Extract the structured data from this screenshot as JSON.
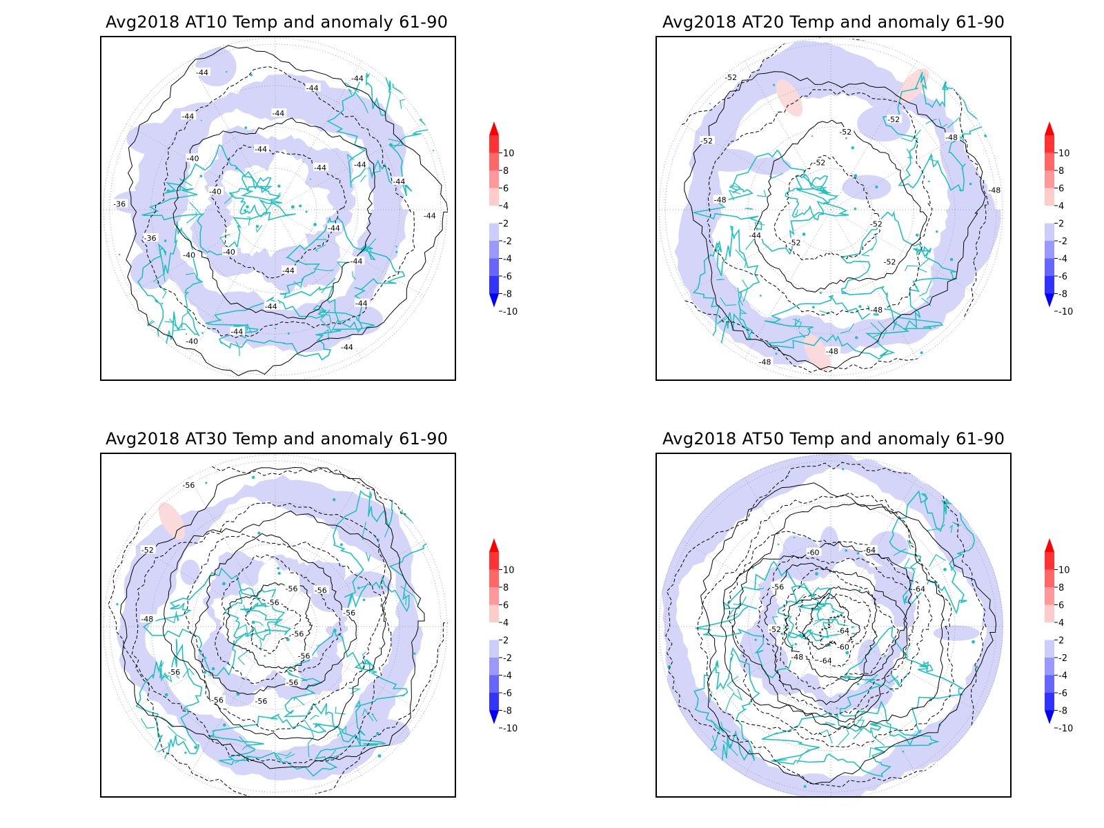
{
  "panels": [
    {
      "title": "Avg2018 AT10 Temp and anomaly 61-90",
      "contour_labels": [
        "-44",
        "-44",
        "-44",
        "-44",
        "-44",
        "-44",
        "-44",
        "-40",
        "-40",
        "-40",
        "-36",
        "-36",
        "-40",
        "-40",
        "-44",
        "-44",
        "-44",
        "-44",
        "-44",
        "-44",
        "-44",
        "-44",
        "-44",
        "-44"
      ],
      "anomaly_colors": [
        "#d5d5fa"
      ]
    },
    {
      "title": "Avg2018 AT20 Temp and anomaly 61-90",
      "contour_labels": [
        "-52",
        "-52",
        "-48",
        "-48",
        "-48",
        "-52",
        "-44",
        "-48",
        "-52",
        "-52",
        "-52",
        "-52",
        "-52",
        "-48",
        "-48"
      ],
      "anomaly_colors": [
        "#d5d5fa",
        "#fadada"
      ]
    },
    {
      "title": "Avg2018 AT30 Temp and anomaly 61-90",
      "contour_labels": [
        "-56",
        "-56",
        "-56",
        "-56",
        "-56",
        "-56",
        "-48",
        "-52",
        "-56",
        "-56",
        "-56",
        "-56",
        "-56"
      ],
      "anomaly_colors": [
        "#d5d5fa",
        "#fadada"
      ]
    },
    {
      "title": "Avg2018 AT50 Temp and anomaly 61-90",
      "contour_labels": [
        "-64",
        "-60",
        "-64",
        "-48",
        "-52",
        "-56",
        "-60",
        "-64",
        "-64"
      ],
      "anomaly_colors": [
        "#d5d5fa"
      ]
    }
  ],
  "colorbar": {
    "labels": [
      "10",
      "8",
      "6",
      "4",
      "2",
      "-2",
      "-4",
      "-6",
      "-8",
      "-10"
    ],
    "colors": [
      "#ff0000",
      "#ff3333",
      "#ff6666",
      "#ff9999",
      "#ffcccc",
      "#ffffff",
      "#ccccff",
      "#9999ff",
      "#6666ff",
      "#3333ff",
      "#0000ff"
    ]
  },
  "styles": {
    "coastline_color": "#20c0c0",
    "contour_color": "#000000",
    "grid_color": "#a0a0a0"
  }
}
